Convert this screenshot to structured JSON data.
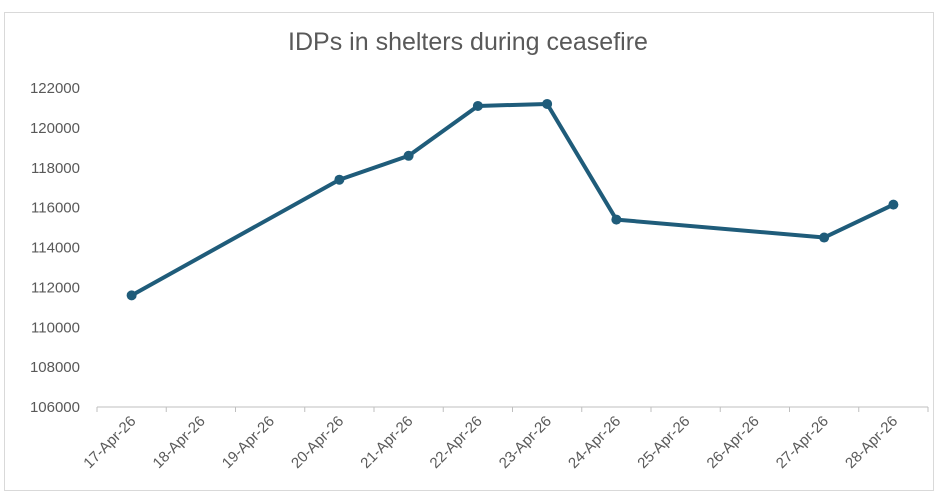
{
  "chart_data": {
    "type": "line",
    "title": "IDPs in shelters during ceasefire",
    "xlabel": "",
    "ylabel": "",
    "categories": [
      "17-Apr-26",
      "18-Apr-26",
      "19-Apr-26",
      "20-Apr-26",
      "21-Apr-26",
      "22-Apr-26",
      "23-Apr-26",
      "24-Apr-26",
      "25-Apr-26",
      "26-Apr-26",
      "27-Apr-26",
      "28-Apr-26"
    ],
    "series": [
      {
        "values": [
          111600,
          null,
          null,
          117400,
          118600,
          121100,
          121200,
          115400,
          null,
          null,
          114500,
          116150
        ],
        "color": "#1f5c7a"
      }
    ],
    "ylim": [
      106000,
      122000
    ],
    "yticks": [
      "106000",
      "108000",
      "110000",
      "112000",
      "114000",
      "116000",
      "118000",
      "120000",
      "122000"
    ],
    "grid": false,
    "legend": "none"
  }
}
